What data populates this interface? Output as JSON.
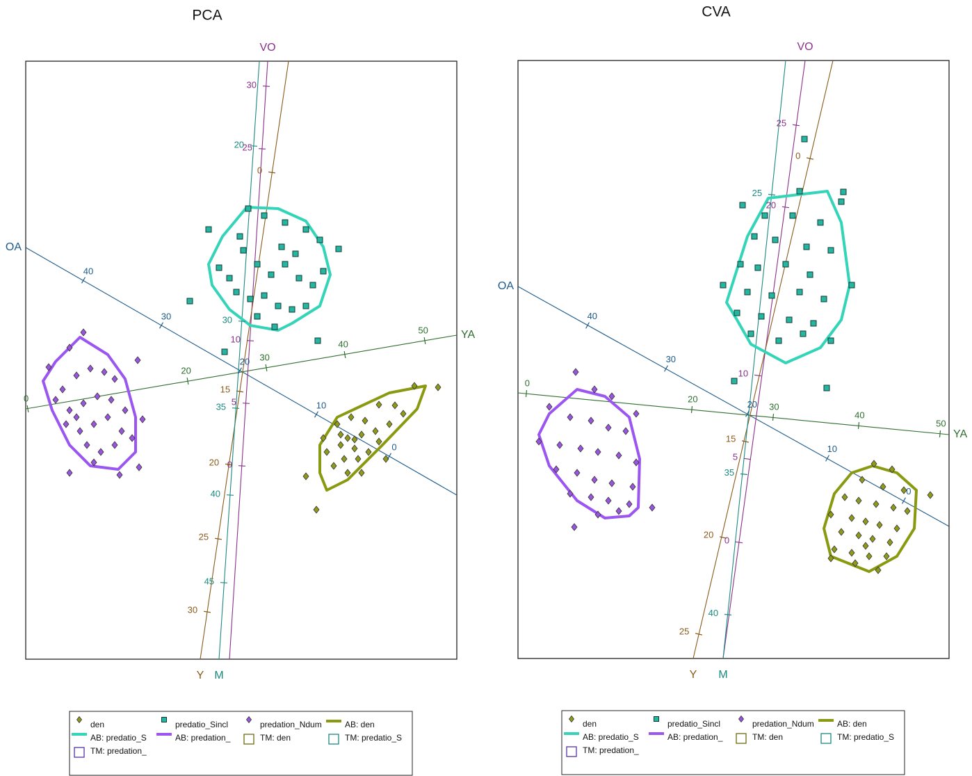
{
  "chart_data": [
    {
      "type": "biplot",
      "title": "PCA",
      "xlim": [
        0,
        620
      ],
      "ylim": [
        0,
        860
      ],
      "axes": [
        {
          "name": "OA",
          "color": "#1d5a8a",
          "start": [
            620,
            236
          ],
          "end": [
            0,
            592
          ],
          "ticks": [
            {
              "value": 40,
              "at": [
                83,
                545
              ]
            },
            {
              "value": 30,
              "at": [
                195,
                480
              ]
            },
            {
              "value": 20,
              "at": [
                308,
                415
              ]
            },
            {
              "value": 10,
              "at": [
                418,
                352
              ]
            },
            {
              "value": 0,
              "at": [
                523,
                292
              ]
            }
          ]
        },
        {
          "name": "YA",
          "color": "#2e6e2e",
          "start": [
            0,
            360
          ],
          "end": [
            620,
            466
          ],
          "ticks": [
            {
              "value": 0,
              "at": [
                3,
                360
              ]
            },
            {
              "value": 20,
              "at": [
                233,
                400
              ]
            },
            {
              "value": 30,
              "at": [
                346,
                419
              ]
            },
            {
              "value": 40,
              "at": [
                459,
                438
              ]
            },
            {
              "value": 50,
              "at": [
                574,
                458
              ]
            }
          ]
        },
        {
          "name": "VO",
          "color": "#8b2f8b",
          "start": [
            293,
            0
          ],
          "end": [
            348,
            860
          ],
          "ticks": [
            {
              "value": 0,
              "at": [
                311,
                278
              ]
            },
            {
              "value": 5,
              "at": [
                317,
                368
              ]
            },
            {
              "value": 10,
              "at": [
                323,
                458
              ]
            },
            {
              "value": 25,
              "at": [
                340,
                734
              ]
            },
            {
              "value": 30,
              "at": [
                346,
                824
              ]
            }
          ]
        },
        {
          "name": "Y",
          "color": "#8a5a1a",
          "start": [
            378,
            860
          ],
          "end": [
            251,
            0
          ],
          "ticks": [
            {
              "value": 0,
              "at": [
                354,
                700
              ]
            },
            {
              "value": 15,
              "at": [
                308,
                385
              ]
            },
            {
              "value": 20,
              "at": [
                292,
                280
              ]
            },
            {
              "value": 25,
              "at": [
                277,
                173
              ]
            },
            {
              "value": 30,
              "at": [
                261,
                68
              ]
            }
          ]
        },
        {
          "name": "M",
          "color": "#1a8a80",
          "start": [
            336,
            860
          ],
          "end": [
            278,
            0
          ],
          "ticks": [
            {
              "value": 20,
              "at": [
                328,
                738
              ]
            },
            {
              "value": 30,
              "at": [
                311,
                486
              ]
            },
            {
              "value": 35,
              "at": [
                302,
                361
              ]
            },
            {
              "value": 40,
              "at": [
                294,
                236
              ]
            },
            {
              "value": 45,
              "at": [
                285,
                110
              ]
            }
          ]
        }
      ],
      "series": [
        {
          "name": "den",
          "color": "#8f9a1a",
          "marker": "diamond",
          "x": [
            593,
            559,
            531,
            508,
            543,
            523,
            503,
            483,
            463,
            453,
            473,
            493,
            478,
            458,
            443,
            433,
            428,
            448,
            468,
            488,
            508,
            518,
            403,
            418,
            463,
            483,
            453,
            473
          ],
          "y": [
            391,
            393,
            365,
            366,
            353,
            338,
            328,
            323,
            318,
            308,
            303,
            298,
            288,
            288,
            278,
            298,
            318,
            338,
            348,
            343,
            313,
            288,
            263,
            215,
            268,
            268,
            323,
            316
          ]
        },
        {
          "name": "predatio_Sincl",
          "color": "#26b5a0",
          "marker": "square",
          "x": [
            263,
            320,
            343,
            373,
            403,
            423,
            450,
            278,
            293,
            313,
            333,
            353,
            373,
            393,
            413,
            428,
            303,
            323,
            343,
            363,
            383,
            403,
            333,
            358,
            236,
            286,
            420,
            308,
            368,
            388
          ],
          "y": [
            618,
            648,
            638,
            628,
            618,
            603,
            590,
            563,
            548,
            588,
            568,
            553,
            568,
            548,
            538,
            558,
            528,
            518,
            523,
            508,
            503,
            508,
            493,
            478,
            515,
            442,
            458,
            608,
            593,
            583
          ]
        },
        {
          "name": "predation_Ndum",
          "color": "#9955dd",
          "marker": "diamond",
          "x": [
            83,
            63,
            33,
            53,
            73,
            93,
            113,
            128,
            161,
            43,
            63,
            83,
            103,
            123,
            143,
            58,
            78,
            98,
            118,
            138,
            168,
            88,
            108,
            128,
            153,
            63,
            98,
            135,
            163,
            73
          ],
          "y": [
            470,
            448,
            420,
            388,
            408,
            418,
            413,
            403,
            430,
            373,
            358,
            368,
            378,
            373,
            358,
            338,
            328,
            338,
            348,
            328,
            345,
            308,
            298,
            308,
            318,
            268,
            283,
            265,
            276,
            348
          ]
        }
      ],
      "hulls": [
        {
          "name": "AB: den",
          "color": "#8a9a10",
          "x": [
            575,
            563,
            513,
            463,
            433,
            423,
            423,
            448,
            523
          ],
          "y": [
            393,
            360,
            308,
            258,
            243,
            268,
            308,
            348,
            383
          ]
        },
        {
          "name": "AB: predatio_S",
          "color": "#33d4b8",
          "x": [
            318,
            363,
            403,
            428,
            438,
            423,
            383,
            363,
            323,
            293,
            268,
            263,
            283
          ],
          "y": [
            650,
            648,
            630,
            593,
            553,
            508,
            483,
            473,
            480,
            503,
            538,
            568,
            608
          ]
        },
        {
          "name": "AB: predation_",
          "color": "#9b55f0",
          "x": [
            78,
            118,
            143,
            158,
            158,
            133,
            93,
            63,
            38,
            25,
            43
          ],
          "y": [
            463,
            438,
            403,
            348,
            298,
            273,
            278,
            308,
            358,
            400,
            428
          ]
        }
      ],
      "markers": [
        {
          "name": "TM: den",
          "color": "#6b6b10"
        },
        {
          "name": "TM: predatio_S",
          "color": "#1a8a80"
        },
        {
          "name": "TM: predation_",
          "color": "#5533aa"
        }
      ]
    },
    {
      "type": "biplot",
      "title": "CVA",
      "xlim": [
        0,
        620
      ],
      "ylim": [
        0,
        860
      ],
      "axes": [
        {
          "name": "OA",
          "color": "#1d5a8a",
          "start": [
            620,
            190
          ],
          "end": [
            0,
            535
          ],
          "ticks": [
            {
              "value": 40,
              "at": [
                100,
                479
              ]
            },
            {
              "value": 30,
              "at": [
                213,
                417
              ]
            },
            {
              "value": 20,
              "at": [
                330,
                352
              ]
            },
            {
              "value": 10,
              "at": [
                445,
                288
              ]
            },
            {
              "value": 0,
              "at": [
                555,
                227
              ]
            }
          ]
        },
        {
          "name": "YA",
          "color": "#2e6e2e",
          "start": [
            0,
            382
          ],
          "end": [
            620,
            322
          ],
          "ticks": [
            {
              "value": 0,
              "at": [
                12,
                381
              ]
            },
            {
              "value": 20,
              "at": [
                250,
                358
              ]
            },
            {
              "value": 30,
              "at": [
                367,
                347
              ]
            },
            {
              "value": 40,
              "at": [
                490,
                335
              ]
            },
            {
              "value": 50,
              "at": [
                607,
                323
              ]
            }
          ]
        },
        {
          "name": "VO",
          "color": "#8b2f8b",
          "start": [
            295,
            0
          ],
          "end": [
            413,
            860
          ],
          "ticks": [
            {
              "value": 0,
              "at": [
                318,
                167
              ]
            },
            {
              "value": 5,
              "at": [
                330,
                287
              ]
            },
            {
              "value": 10,
              "at": [
                345,
                407
              ]
            },
            {
              "value": 20,
              "at": [
                385,
                649
              ]
            },
            {
              "value": 25,
              "at": [
                400,
                767
              ]
            }
          ]
        },
        {
          "name": "Y",
          "color": "#8a5a1a",
          "start": [
            453,
            860
          ],
          "end": [
            252,
            0
          ],
          "ticks": [
            {
              "value": 0,
              "at": [
                420,
                719
              ]
            },
            {
              "value": 15,
              "at": [
                327,
                312
              ]
            },
            {
              "value": 20,
              "at": [
                295,
                174
              ]
            },
            {
              "value": 25,
              "at": [
                260,
                35
              ]
            }
          ]
        },
        {
          "name": "M",
          "color": "#1a8a80",
          "start": [
            385,
            860
          ],
          "end": [
            295,
            0
          ],
          "ticks": [
            {
              "value": 25,
              "at": [
                365,
                667
              ]
            },
            {
              "value": 35,
              "at": [
                325,
                265
              ]
            },
            {
              "value": 40,
              "at": [
                302,
                63
              ]
            }
          ]
        }
      ],
      "series": [
        {
          "name": "den",
          "color": "#8f9a1a",
          "marker": "diamond",
          "x": [
            512,
            538,
            495,
            525,
            555,
            593,
            470,
            490,
            515,
            540,
            560,
            450,
            480,
            500,
            520,
            545,
            465,
            490,
            510,
            535,
            455,
            480,
            505,
            530,
            450,
            485,
            518,
            500
          ],
          "y": [
            280,
            272,
            257,
            247,
            242,
            235,
            232,
            227,
            222,
            217,
            212,
            207,
            202,
            197,
            192,
            187,
            182,
            177,
            172,
            167,
            157,
            152,
            147,
            147,
            144,
            137,
            127,
            162
          ]
        },
        {
          "name": "predatio_Sincl",
          "color": "#26b5a0",
          "marker": "square",
          "x": [
            323,
            405,
            465,
            468,
            412,
            355,
            395,
            435,
            340,
            370,
            415,
            450,
            320,
            345,
            385,
            420,
            480,
            295,
            330,
            365,
            405,
            440,
            315,
            350,
            390,
            425,
            335,
            375,
            410,
            450,
            311,
            444
          ],
          "y": [
            652,
            672,
            657,
            671,
            747,
            637,
            637,
            627,
            607,
            602,
            592,
            587,
            567,
            562,
            567,
            552,
            537,
            537,
            527,
            522,
            527,
            517,
            497,
            492,
            487,
            482,
            467,
            457,
            467,
            457,
            399,
            389
          ]
        },
        {
          "name": "predation_Ndum",
          "color": "#9955dd",
          "marker": "diamond",
          "x": [
            83,
            110,
            135,
            170,
            45,
            75,
            105,
            130,
            155,
            30,
            60,
            90,
            115,
            145,
            170,
            55,
            85,
            110,
            135,
            165,
            75,
            105,
            130,
            160,
            193,
            115,
            81,
            145
          ],
          "y": [
            412,
            387,
            377,
            352,
            362,
            347,
            342,
            332,
            327,
            312,
            307,
            302,
            297,
            292,
            282,
            272,
            267,
            257,
            252,
            247,
            237,
            232,
            227,
            222,
            217,
            207,
            189,
            212
          ]
        }
      ],
      "hulls": [
        {
          "name": "AB: den",
          "color": "#8a9a10",
          "x": [
            510,
            545,
            573,
            570,
            545,
            505,
            450,
            440,
            455,
            480
          ],
          "y": [
            277,
            267,
            242,
            187,
            147,
            125,
            147,
            187,
            237,
            267
          ]
        },
        {
          "name": "AB: predatio_S",
          "color": "#33d4b8",
          "x": [
            360,
            445,
            465,
            477,
            465,
            435,
            385,
            335,
            315,
            300,
            330
          ],
          "y": [
            662,
            672,
            627,
            537,
            487,
            447,
            425,
            452,
            487,
            512,
            607
          ]
        },
        {
          "name": "AB: predation_",
          "color": "#9b55f0",
          "x": [
            85,
            125,
            160,
            175,
            173,
            160,
            125,
            85,
            45,
            30,
            45
          ],
          "y": [
            387,
            377,
            347,
            287,
            217,
            205,
            202,
            227,
            277,
            322,
            352
          ]
        }
      ],
      "markers": [
        {
          "name": "TM: den",
          "color": "#6b6b10"
        },
        {
          "name": "TM: predatio_S",
          "color": "#1a8a80"
        },
        {
          "name": "TM: predation_",
          "color": "#5533aa"
        }
      ]
    }
  ]
}
